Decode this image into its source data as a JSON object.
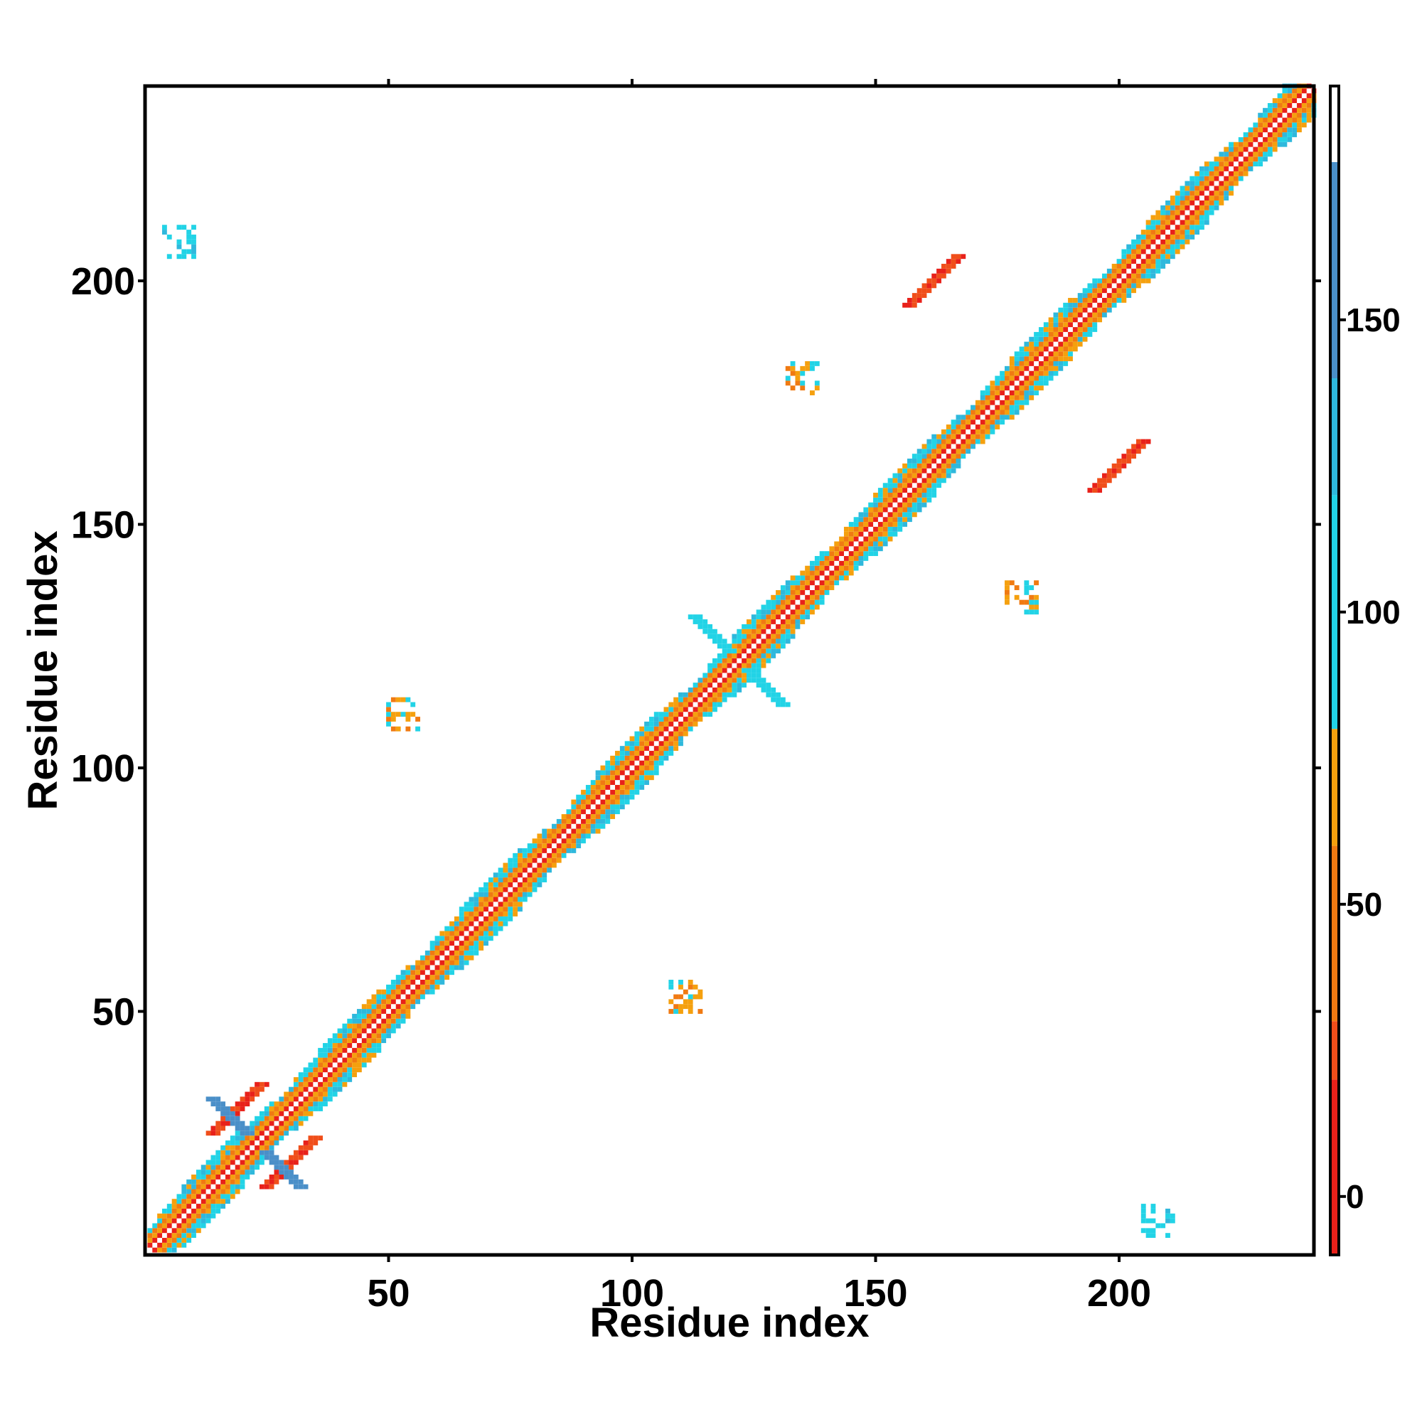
{
  "chart_data": {
    "type": "heatmap",
    "title": "",
    "xlabel": "Residue index",
    "ylabel": "Residue index",
    "n_residues": 240,
    "xlim": [
      1,
      240
    ],
    "ylim": [
      1,
      240
    ],
    "x_ticks": [
      50,
      100,
      150,
      200
    ],
    "y_ticks": [
      50,
      100,
      150,
      200
    ],
    "x_tick_labels": [
      "50",
      "100",
      "150",
      "200"
    ],
    "y_tick_labels": [
      "50",
      "100",
      "150",
      "200"
    ],
    "colorbar": {
      "range": [
        -10,
        190
      ],
      "ticks": [
        0,
        50,
        100,
        150
      ],
      "tick_labels": [
        "0",
        "50",
        "100",
        "150"
      ],
      "bins": [
        {
          "from": -10,
          "to": 20,
          "color": "#e8211a"
        },
        {
          "from": 20,
          "to": 30,
          "color": "#f04e1a"
        },
        {
          "from": 30,
          "to": 60,
          "color": "#f07a12"
        },
        {
          "from": 60,
          "to": 80,
          "color": "#f5a00e"
        },
        {
          "from": 80,
          "to": 120,
          "color": "#22d3e6"
        },
        {
          "from": 120,
          "to": 140,
          "color": "#2fb8dc"
        },
        {
          "from": 140,
          "to": 177,
          "color": "#4a8fc8"
        },
        {
          "from": 177,
          "to": 190,
          "color": "#ffffff"
        }
      ]
    },
    "features": [
      {
        "kind": "diagonal",
        "from": 1,
        "to": 240
      },
      {
        "kind": "blob",
        "x": 19,
        "y": 30,
        "value": 15
      },
      {
        "kind": "blob",
        "x": 30,
        "y": 19,
        "value": 15
      },
      {
        "kind": "blob",
        "x": 162,
        "y": 200,
        "value": 15
      },
      {
        "kind": "blob",
        "x": 200,
        "y": 162,
        "value": 15
      },
      {
        "kind": "cross",
        "x": 23,
        "y": 23,
        "value": 150
      },
      {
        "kind": "cross",
        "x": 122,
        "y": 122,
        "value": 95
      },
      {
        "kind": "patch",
        "x": 7,
        "y": 208,
        "value": 110
      },
      {
        "kind": "patch",
        "x": 208,
        "y": 7,
        "value": 110
      },
      {
        "kind": "patch",
        "x": 135,
        "y": 180,
        "value": 70
      },
      {
        "kind": "patch",
        "x": 180,
        "y": 135,
        "value": 70
      },
      {
        "kind": "patch",
        "x": 53,
        "y": 111,
        "value": 70
      },
      {
        "kind": "patch",
        "x": 111,
        "y": 53,
        "value": 70
      }
    ]
  }
}
